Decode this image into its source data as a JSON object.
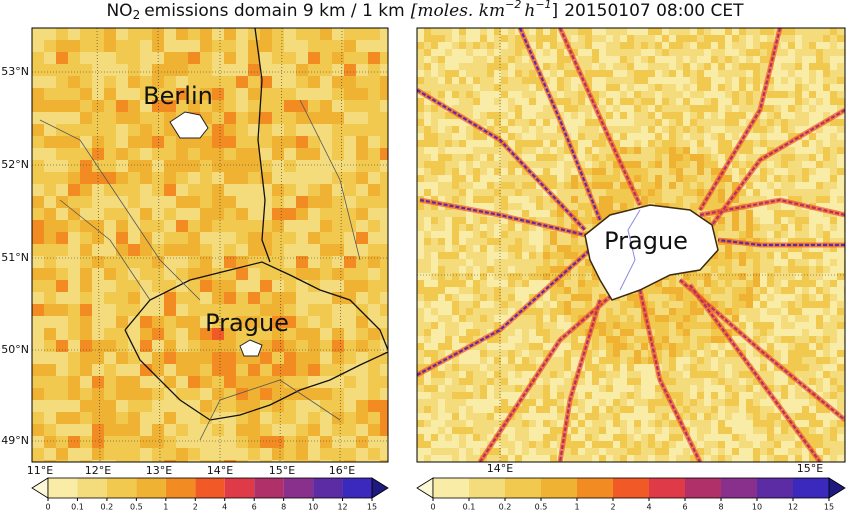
{
  "title": {
    "species": "NO",
    "species_sub": "2",
    "main": "emissions domain 9 km / 1 km",
    "unit_open": "[moles. km",
    "unit_exp1": "−2",
    "unit_h": "h",
    "unit_exp2": "−1",
    "unit_close": "]",
    "date": "20150107 08:00 CET"
  },
  "left_map": {
    "cities": [
      "Berlin",
      "Prague"
    ],
    "lat_labels": [
      "53°N",
      "52°N",
      "51°N",
      "50°N",
      "49°N"
    ],
    "lon_labels": [
      "11°E",
      "12°E",
      "13°E",
      "14°E",
      "15°E",
      "16°E"
    ]
  },
  "right_map": {
    "cities": [
      "Prague"
    ],
    "lon_labels": [
      "14°E",
      "15°E"
    ]
  },
  "colorbar": {
    "ticks": [
      0,
      0.1,
      0.2,
      0.5,
      1,
      2,
      4,
      6,
      8,
      10,
      12,
      15
    ],
    "colors": [
      "#fdf8d6",
      "#f9eca6",
      "#f4dc7c",
      "#f0c94e",
      "#f0b232",
      "#f28c22",
      "#f15a27",
      "#de3a47",
      "#b0306a",
      "#88308c",
      "#5c2ca4",
      "#3a29bc",
      "#1e1a7e"
    ]
  }
}
